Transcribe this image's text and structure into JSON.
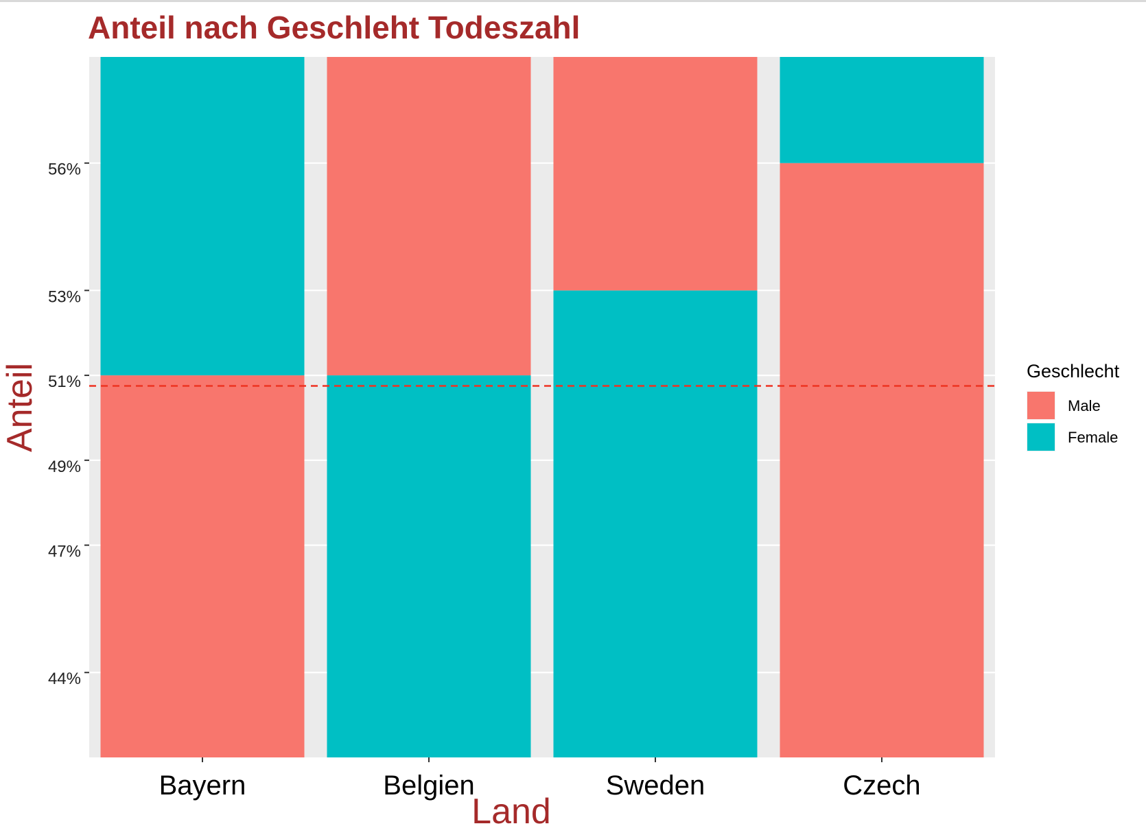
{
  "chart_data": {
    "type": "bar",
    "stacked": true,
    "title": "Anteil nach Geschleht Todeszahl",
    "xlabel": "Land",
    "ylabel": "Anteil",
    "categories": [
      "Bayern",
      "Belgien",
      "Sweden",
      "Czech"
    ],
    "bars": [
      {
        "category": "Bayern",
        "segments": [
          {
            "series": "Male",
            "from": 0.42,
            "to": 0.51
          },
          {
            "series": "Female",
            "from": 0.51,
            "to": 0.585
          }
        ]
      },
      {
        "category": "Belgien",
        "segments": [
          {
            "series": "Female",
            "from": 0.42,
            "to": 0.51
          },
          {
            "series": "Male",
            "from": 0.51,
            "to": 0.585
          }
        ]
      },
      {
        "category": "Sweden",
        "segments": [
          {
            "series": "Female",
            "from": 0.42,
            "to": 0.53
          },
          {
            "series": "Male",
            "from": 0.53,
            "to": 0.585
          }
        ]
      },
      {
        "category": "Czech",
        "segments": [
          {
            "series": "Male",
            "from": 0.42,
            "to": 0.56
          },
          {
            "series": "Female",
            "from": 0.56,
            "to": 0.585
          }
        ]
      }
    ],
    "y_ticks": [
      {
        "value": 0.44,
        "label": "44%"
      },
      {
        "value": 0.47,
        "label": "47%"
      },
      {
        "value": 0.49,
        "label": "49%"
      },
      {
        "value": 0.51,
        "label": "51%"
      },
      {
        "value": 0.53,
        "label": "53%"
      },
      {
        "value": 0.56,
        "label": "56%"
      }
    ],
    "ylim": [
      0.42,
      0.585
    ],
    "reference_line": {
      "value": 0.5075,
      "style": "dashed",
      "color": "#ee3322"
    },
    "legend": {
      "title": "Geschlecht",
      "placement": "right",
      "items": [
        {
          "name": "Male",
          "color": "#f8766d"
        },
        {
          "name": "Female",
          "color": "#00bfc4"
        }
      ]
    },
    "colors": {
      "Male": "#f8766d",
      "Female": "#00bfc4",
      "panel": "#ebebeb",
      "grid": "#ffffff",
      "title": "#a52a2a"
    },
    "grid": true
  }
}
